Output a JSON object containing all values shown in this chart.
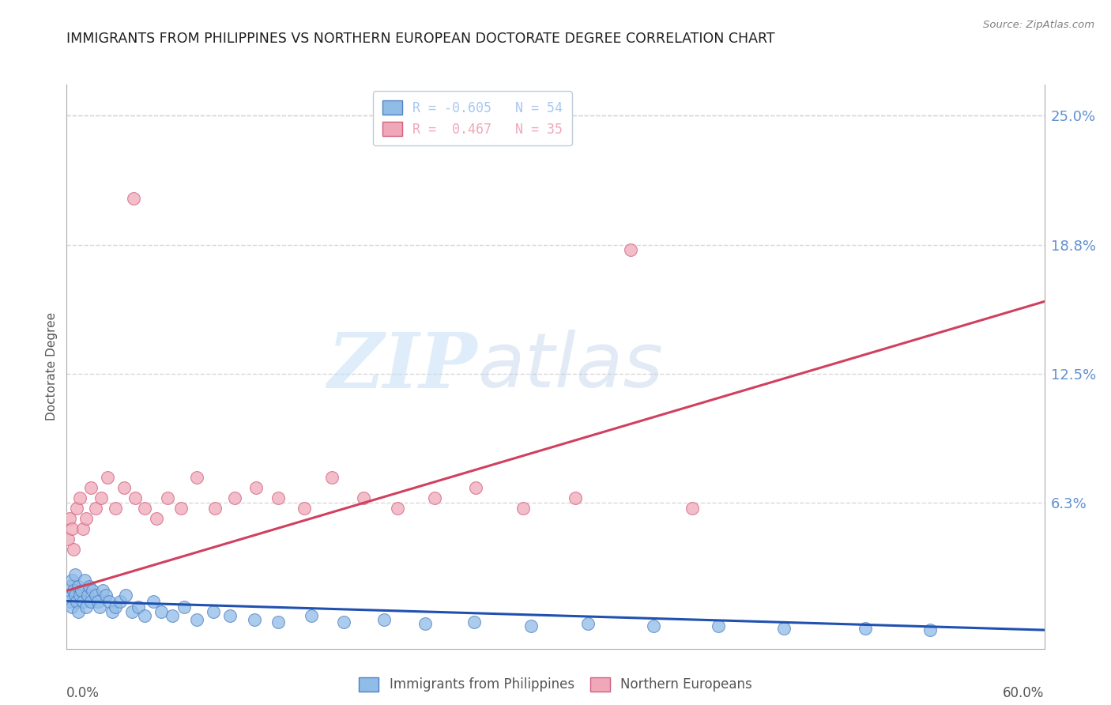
{
  "title": "IMMIGRANTS FROM PHILIPPINES VS NORTHERN EUROPEAN DOCTORATE DEGREE CORRELATION CHART",
  "source": "Source: ZipAtlas.com",
  "ylabel": "Doctorate Degree",
  "ytick_vals": [
    0.0,
    0.0625,
    0.125,
    0.1875,
    0.25
  ],
  "ytick_labels": [
    "",
    "6.3%",
    "12.5%",
    "18.8%",
    "25.0%"
  ],
  "xlim": [
    0.0,
    0.6
  ],
  "ylim": [
    -0.008,
    0.265
  ],
  "legend_entry1": "R = -0.605   N = 54",
  "legend_entry2": "R =  0.467   N = 35",
  "legend_color1": "#a8c8f0",
  "legend_color2": "#f0a8b8",
  "legend_label1": "Immigrants from Philippines",
  "legend_label2": "Northern Europeans",
  "watermark_zip": "ZIP",
  "watermark_atlas": "atlas",
  "blue_color": "#90bce8",
  "blue_edge": "#5080c0",
  "pink_color": "#f0a8b8",
  "pink_edge": "#d06080",
  "blue_line_color": "#2050b0",
  "pink_line_color": "#d04060",
  "background_color": "#ffffff",
  "grid_color": "#d8d8d8",
  "ytick_color": "#6090d0",
  "title_color": "#202020",
  "title_fontsize": 12.5,
  "blue_x": [
    0.001,
    0.002,
    0.002,
    0.003,
    0.003,
    0.004,
    0.005,
    0.005,
    0.006,
    0.007,
    0.007,
    0.008,
    0.009,
    0.01,
    0.011,
    0.012,
    0.013,
    0.014,
    0.015,
    0.016,
    0.018,
    0.019,
    0.02,
    0.022,
    0.024,
    0.026,
    0.028,
    0.03,
    0.033,
    0.036,
    0.04,
    0.044,
    0.048,
    0.053,
    0.058,
    0.065,
    0.072,
    0.08,
    0.09,
    0.1,
    0.115,
    0.13,
    0.15,
    0.17,
    0.195,
    0.22,
    0.25,
    0.285,
    0.32,
    0.36,
    0.4,
    0.44,
    0.49,
    0.53
  ],
  "blue_y": [
    0.018,
    0.022,
    0.015,
    0.025,
    0.012,
    0.02,
    0.018,
    0.028,
    0.015,
    0.022,
    0.01,
    0.018,
    0.02,
    0.015,
    0.025,
    0.012,
    0.018,
    0.022,
    0.015,
    0.02,
    0.018,
    0.015,
    0.012,
    0.02,
    0.018,
    0.015,
    0.01,
    0.012,
    0.015,
    0.018,
    0.01,
    0.012,
    0.008,
    0.015,
    0.01,
    0.008,
    0.012,
    0.006,
    0.01,
    0.008,
    0.006,
    0.005,
    0.008,
    0.005,
    0.006,
    0.004,
    0.005,
    0.003,
    0.004,
    0.003,
    0.003,
    0.002,
    0.002,
    0.001
  ],
  "pink_x": [
    0.001,
    0.002,
    0.003,
    0.004,
    0.006,
    0.008,
    0.01,
    0.012,
    0.015,
    0.018,
    0.021,
    0.025,
    0.03,
    0.035,
    0.041,
    0.042,
    0.048,
    0.055,
    0.062,
    0.07,
    0.08,
    0.091,
    0.103,
    0.116,
    0.13,
    0.146,
    0.163,
    0.182,
    0.203,
    0.226,
    0.251,
    0.28,
    0.312,
    0.346,
    0.384
  ],
  "pink_y": [
    0.045,
    0.055,
    0.05,
    0.04,
    0.06,
    0.065,
    0.05,
    0.055,
    0.07,
    0.06,
    0.065,
    0.075,
    0.06,
    0.07,
    0.21,
    0.065,
    0.06,
    0.055,
    0.065,
    0.06,
    0.075,
    0.06,
    0.065,
    0.07,
    0.065,
    0.06,
    0.075,
    0.065,
    0.06,
    0.065,
    0.07,
    0.06,
    0.065,
    0.185,
    0.06
  ],
  "blue_trend_x": [
    0.0,
    0.6
  ],
  "blue_trend_y": [
    0.015,
    0.001
  ],
  "pink_trend_x": [
    0.0,
    0.6
  ],
  "pink_trend_y": [
    0.02,
    0.16
  ]
}
